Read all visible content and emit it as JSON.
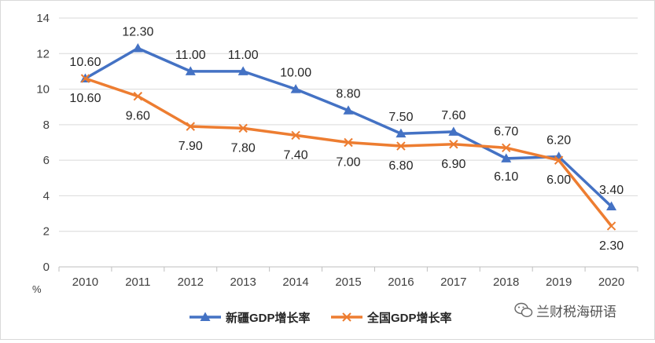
{
  "chart_data": {
    "type": "line",
    "categories": [
      "2010",
      "2011",
      "2012",
      "2013",
      "2014",
      "2015",
      "2016",
      "2017",
      "2018",
      "2019",
      "2020"
    ],
    "series": [
      {
        "name": "新疆GDP增长率",
        "color": "#4472C4",
        "marker": "triangle",
        "values": [
          10.6,
          12.3,
          11.0,
          11.0,
          10.0,
          8.8,
          7.5,
          7.6,
          6.1,
          6.2,
          3.4
        ],
        "labels": [
          "10.60",
          "12.30",
          "11.00",
          "11.00",
          "10.00",
          "8.80",
          "7.50",
          "7.60",
          "6.10",
          "6.20",
          "3.40"
        ]
      },
      {
        "name": "全国GDP增长率",
        "color": "#ED7D31",
        "marker": "x",
        "values": [
          10.6,
          9.6,
          7.9,
          7.8,
          7.4,
          7.0,
          6.8,
          6.9,
          6.7,
          6.0,
          2.3
        ],
        "labels": [
          "10.60",
          "9.60",
          "7.90",
          "7.80",
          "7.40",
          "7.00",
          "6.80",
          "6.90",
          "6.70",
          "6.00",
          "2.30"
        ]
      }
    ],
    "ylim": [
      0,
      14
    ],
    "yticks": [
      "0",
      "2",
      "4",
      "6",
      "8",
      "10",
      "12",
      "14"
    ],
    "ylabel": "%",
    "grid": true,
    "legend": "bottom"
  },
  "watermark": {
    "text": "兰财税海研语",
    "icon": "wechat-icon"
  }
}
